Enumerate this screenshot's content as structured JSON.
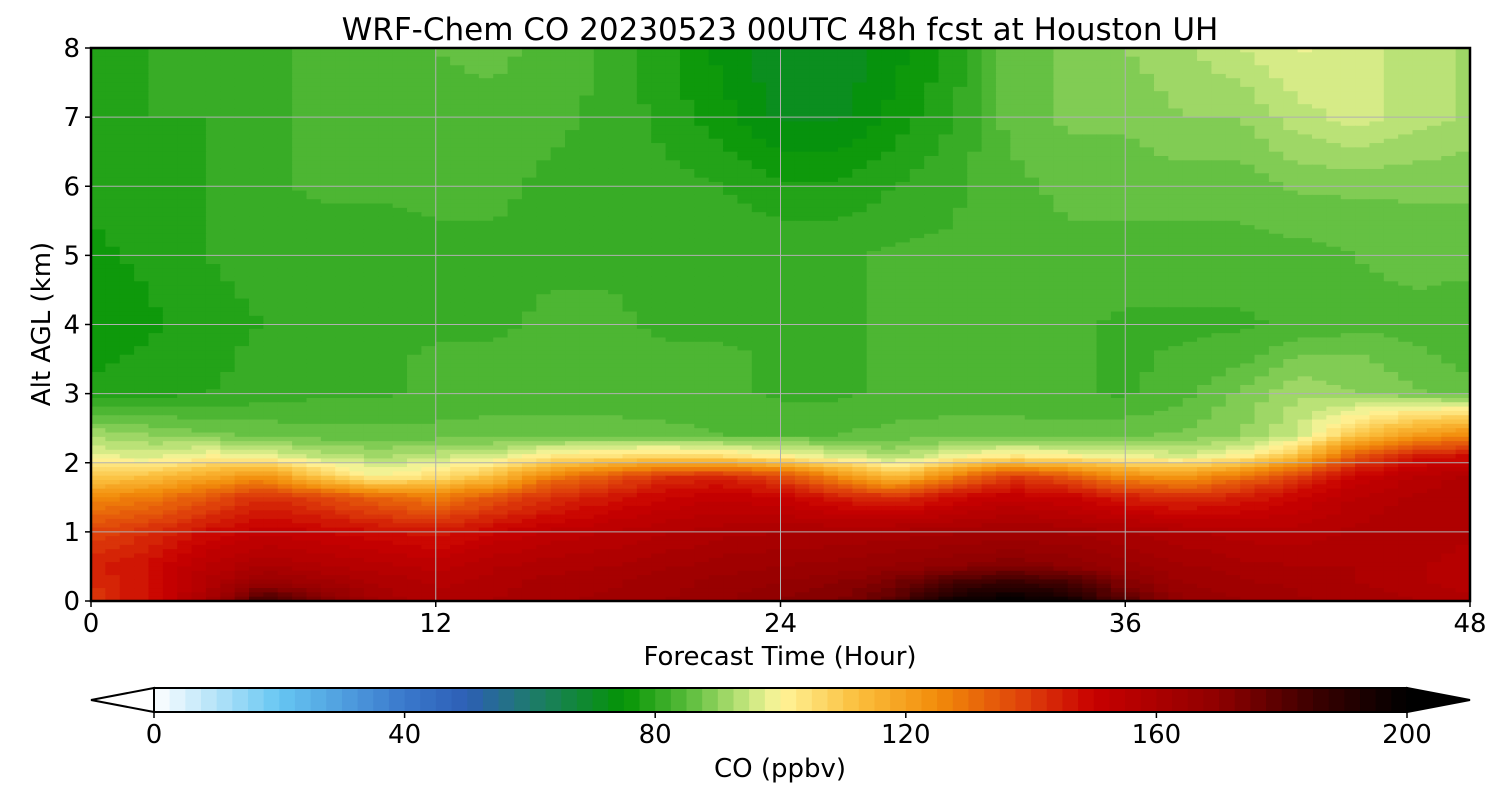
{
  "chart_data": {
    "type": "heatmap",
    "title": "WRF-Chem CO  20230523 00UTC 48h fcst at Houston UH",
    "xlabel": "Forecast Time (Hour)",
    "ylabel": "Alt AGL (km)",
    "xlim": [
      0,
      48
    ],
    "ylim": [
      0,
      8
    ],
    "x_ticks": [
      0,
      12,
      24,
      36,
      48
    ],
    "y_ticks": [
      0,
      1,
      2,
      3,
      4,
      5,
      6,
      7,
      8
    ],
    "grid": true,
    "colorbar": {
      "label": "CO  (ppbv)",
      "range": [
        0,
        200
      ],
      "ticks": [
        0,
        40,
        80,
        120,
        160,
        200
      ],
      "extend": "both",
      "orientation": "horizontal",
      "stops": [
        {
          "v": 0,
          "c": "#ffffff"
        },
        {
          "v": 20,
          "c": "#66c6f2"
        },
        {
          "v": 40,
          "c": "#3a78cc"
        },
        {
          "v": 50,
          "c": "#2d5fb5"
        },
        {
          "v": 60,
          "c": "#1e7a6e"
        },
        {
          "v": 75,
          "c": "#049404"
        },
        {
          "v": 85,
          "c": "#57bb3a"
        },
        {
          "v": 95,
          "c": "#c8e880"
        },
        {
          "v": 100,
          "c": "#fff59a"
        },
        {
          "v": 112,
          "c": "#fbc03e"
        },
        {
          "v": 125,
          "c": "#f28c0a"
        },
        {
          "v": 140,
          "c": "#dd3a0a"
        },
        {
          "v": 150,
          "c": "#c80000"
        },
        {
          "v": 170,
          "c": "#8e0000"
        },
        {
          "v": 185,
          "c": "#3c0000"
        },
        {
          "v": 200,
          "c": "#000000"
        }
      ]
    },
    "altitude_levels_km": [
      0,
      0.25,
      0.5,
      1,
      1.5,
      1.8,
      2.1,
      2.4,
      3,
      3.5,
      4,
      5,
      6,
      7,
      8
    ],
    "time_hours": [
      0,
      2,
      4,
      6,
      8,
      10,
      12,
      14,
      16,
      18,
      20,
      22,
      24,
      26,
      28,
      30,
      32,
      34,
      36,
      38,
      40,
      42,
      44,
      46,
      48
    ],
    "values_ppbv": [
      [
        140,
        148,
        160,
        186,
        175,
        162,
        158,
        160,
        162,
        163,
        165,
        167,
        170,
        172,
        180,
        196,
        200,
        196,
        180,
        168,
        165,
        163,
        162,
        160,
        158
      ],
      [
        142,
        148,
        158,
        168,
        164,
        160,
        157,
        159,
        161,
        162,
        164,
        166,
        168,
        170,
        175,
        184,
        188,
        184,
        172,
        165,
        163,
        162,
        160,
        158,
        156
      ],
      [
        144,
        148,
        155,
        160,
        158,
        156,
        154,
        157,
        159,
        160,
        162,
        164,
        165,
        166,
        168,
        170,
        172,
        170,
        166,
        163,
        161,
        160,
        160,
        158,
        156
      ],
      [
        138,
        142,
        148,
        152,
        150,
        148,
        146,
        150,
        153,
        155,
        157,
        159,
        160,
        160,
        161,
        162,
        163,
        162,
        160,
        158,
        156,
        156,
        158,
        160,
        158
      ],
      [
        125,
        128,
        135,
        142,
        138,
        132,
        128,
        135,
        142,
        146,
        150,
        152,
        150,
        145,
        142,
        148,
        152,
        150,
        145,
        142,
        145,
        150,
        155,
        158,
        160
      ],
      [
        110,
        112,
        118,
        124,
        110,
        100,
        105,
        112,
        128,
        135,
        142,
        144,
        138,
        125,
        112,
        128,
        140,
        135,
        125,
        122,
        130,
        140,
        150,
        155,
        158
      ],
      [
        98,
        96,
        100,
        98,
        94,
        92,
        94,
        96,
        102,
        104,
        106,
        104,
        100,
        96,
        92,
        98,
        102,
        100,
        98,
        96,
        100,
        112,
        135,
        145,
        148
      ],
      [
        92,
        90,
        88,
        87,
        86,
        86,
        86,
        86,
        86,
        86,
        86,
        85,
        85,
        85,
        86,
        86,
        86,
        86,
        87,
        88,
        90,
        95,
        110,
        120,
        125
      ],
      [
        78,
        79,
        80,
        81,
        82,
        82,
        83,
        84,
        84,
        84,
        83,
        83,
        82,
        82,
        83,
        84,
        84,
        83,
        82,
        84,
        88,
        92,
        90,
        88,
        86
      ],
      [
        77,
        78,
        79,
        81,
        82,
        82,
        83,
        83,
        84,
        84,
        83,
        83,
        82,
        82,
        83,
        84,
        84,
        83,
        82,
        83,
        84,
        88,
        88,
        86,
        84
      ],
      [
        76,
        77,
        79,
        80,
        81,
        81,
        82,
        82,
        83,
        83,
        82,
        82,
        82,
        82,
        83,
        84,
        84,
        83,
        82,
        82,
        82,
        83,
        84,
        84,
        83
      ],
      [
        77,
        78,
        80,
        81,
        81,
        81,
        82,
        82,
        82,
        82,
        82,
        82,
        82,
        82,
        83,
        83,
        83,
        84,
        84,
        84,
        84,
        84,
        85,
        86,
        86
      ],
      [
        78,
        79,
        80,
        82,
        83,
        83,
        83,
        83,
        82,
        82,
        81,
        80,
        78,
        78,
        80,
        82,
        84,
        86,
        86,
        86,
        86,
        88,
        88,
        88,
        88
      ],
      [
        79,
        80,
        80,
        82,
        83,
        84,
        84,
        84,
        83,
        82,
        79,
        76,
        72,
        72,
        76,
        80,
        86,
        88,
        88,
        90,
        90,
        94,
        96,
        94,
        92
      ],
      [
        79,
        80,
        80,
        82,
        83,
        84,
        85,
        86,
        84,
        82,
        78,
        74,
        70,
        70,
        74,
        78,
        86,
        88,
        90,
        92,
        95,
        98,
        96,
        94,
        92
      ]
    ]
  }
}
